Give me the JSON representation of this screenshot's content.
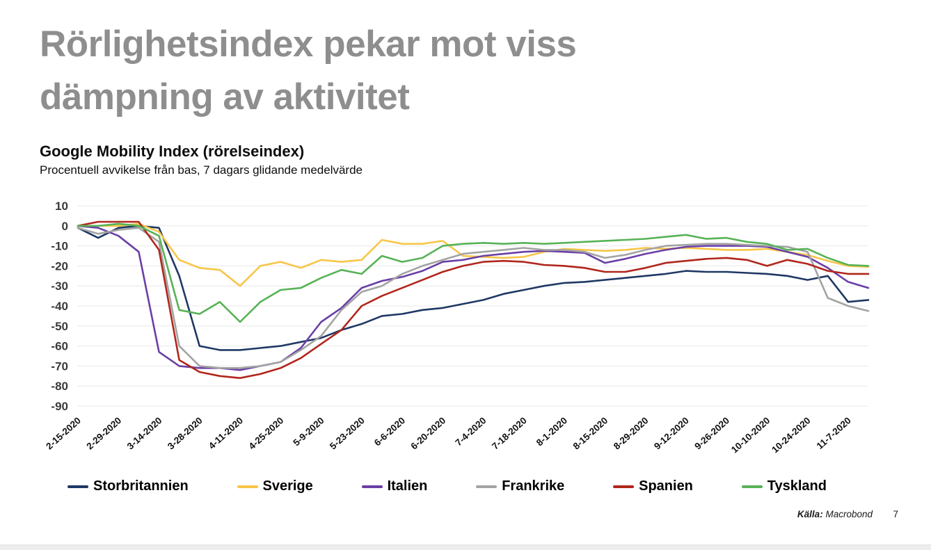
{
  "slide": {
    "title_line1": "Rörlighetsindex pekar mot viss",
    "title_line2": "dämpning av aktivitet"
  },
  "chart": {
    "heading": "Google Mobility Index (rörelseindex)",
    "subheading": "Procentuell avvikelse från bas, 7 dagars glidande medelvärde"
  },
  "footer": {
    "source_label": "Källa:",
    "source_value": "Macrobond",
    "page_number": "7"
  },
  "colors": {
    "title_gray": "#8e8e8e",
    "gridline": "#e8e8e8",
    "axis_text": "#3a3a3a"
  },
  "chart_data": {
    "type": "line",
    "title": "Google Mobility Index (rörelseindex)",
    "subtitle": "Procentuell avvikelse från bas, 7 dagars glidande medelvärde",
    "grid": "horizontal",
    "legend_position": "bottom",
    "ylim": [
      -90,
      10
    ],
    "y_ticks": [
      10,
      0,
      -10,
      -20,
      -30,
      -40,
      -50,
      -60,
      -70,
      -80,
      -90
    ],
    "x": [
      "2-15-2020",
      "2-22-2020",
      "2-29-2020",
      "3-7-2020",
      "3-14-2020",
      "3-21-2020",
      "3-28-2020",
      "4-4-2020",
      "4-11-2020",
      "4-18-2020",
      "4-25-2020",
      "5-2-2020",
      "5-9-2020",
      "5-16-2020",
      "5-23-2020",
      "5-30-2020",
      "6-6-2020",
      "6-13-2020",
      "6-20-2020",
      "6-27-2020",
      "7-4-2020",
      "7-11-2020",
      "7-18-2020",
      "7-25-2020",
      "8-1-2020",
      "8-8-2020",
      "8-15-2020",
      "8-22-2020",
      "8-29-2020",
      "9-5-2020",
      "9-12-2020",
      "9-19-2020",
      "9-26-2020",
      "10-3-2020",
      "10-10-2020",
      "10-17-2020",
      "10-24-2020",
      "10-31-2020",
      "11-7-2020",
      "11-14-2020"
    ],
    "x_tick_labels": [
      "2-15-2020",
      "2-29-2020",
      "3-14-2020",
      "3-28-2020",
      "4-11-2020",
      "4-25-2020",
      "5-9-2020",
      "5-23-2020",
      "6-6-2020",
      "6-20-2020",
      "7-4-2020",
      "7-18-2020",
      "8-1-2020",
      "8-15-2020",
      "8-29-2020",
      "9-12-2020",
      "9-26-2020",
      "10-10-2020",
      "10-24-2020",
      "11-7-2020"
    ],
    "series": [
      {
        "name": "Storbritannien",
        "color": "#1f3864",
        "values": [
          -1,
          -6,
          -1,
          0,
          -1,
          -25,
          -60,
          -62,
          -62,
          -61,
          -60,
          -58,
          -56,
          -52,
          -49,
          -45,
          -44,
          -42,
          -41,
          -39,
          -37,
          -34,
          -32,
          -30,
          -28.5,
          -28,
          -27,
          -26,
          -25,
          -24,
          -22.5,
          -23,
          -23,
          -23.5,
          -24,
          -25,
          -27,
          -25,
          -38,
          -37
        ]
      },
      {
        "name": "Sverige",
        "color": "#f7c648",
        "values": [
          0,
          0,
          0,
          1,
          -3,
          -17,
          -21,
          -22,
          -30,
          -20,
          -18,
          -21,
          -17,
          -18,
          -17,
          -7,
          -9,
          -9,
          -7.5,
          -15,
          -15.5,
          -16,
          -15.5,
          -13,
          -11.5,
          -12,
          -12.5,
          -12,
          -11,
          -11.5,
          -11,
          -11.5,
          -12,
          -12,
          -11.5,
          -13,
          -14.5,
          -17.5,
          -20,
          -20.5
        ]
      },
      {
        "name": "Italien",
        "color": "#6a3fa5",
        "values": [
          0,
          -1,
          -5,
          -13,
          -63,
          -70,
          -71,
          -71,
          -72,
          -70,
          -68,
          -61,
          -48,
          -41,
          -31,
          -27.5,
          -25.5,
          -22.5,
          -18,
          -17,
          -15,
          -14,
          -13,
          -12.5,
          -13,
          -13.5,
          -18.5,
          -16.5,
          -14,
          -12,
          -10.5,
          -10,
          -10,
          -10,
          -10.5,
          -13,
          -15.5,
          -21,
          -28,
          -31
        ]
      },
      {
        "name": "Frankrike",
        "color": "#a3a3a3",
        "values": [
          -1,
          -4,
          -2,
          -1,
          -8,
          -60,
          -70,
          -71,
          -71,
          -70,
          -68,
          -62,
          -55,
          -42,
          -33,
          -30,
          -24,
          -20,
          -17,
          -14,
          -13,
          -12,
          -11,
          -12,
          -12,
          -13,
          -16,
          -14.5,
          -12,
          -10,
          -9.5,
          -9,
          -9,
          -9.5,
          -10,
          -10.5,
          -13,
          -36,
          -40,
          -42.5
        ]
      },
      {
        "name": "Spanien",
        "color": "#b1261c",
        "values": [
          0,
          2,
          2,
          2,
          -12,
          -67,
          -73,
          -75,
          -76,
          -74,
          -71,
          -66,
          -59,
          -52,
          -40,
          -35,
          -31,
          -27,
          -23,
          -20,
          -18,
          -17.5,
          -18,
          -19.5,
          -20,
          -21,
          -23,
          -23,
          -21,
          -18.5,
          -17.5,
          -16.5,
          -16,
          -17,
          -20,
          -17,
          -19,
          -22.5,
          -24,
          -24
        ]
      },
      {
        "name": "Tyskland",
        "color": "#57b256",
        "values": [
          0,
          0,
          1,
          0,
          -5,
          -42,
          -44,
          -38,
          -48,
          -38,
          -32,
          -31,
          -26,
          -22,
          -24,
          -15,
          -18,
          -16,
          -10,
          -9,
          -8.5,
          -9,
          -8.5,
          -9,
          -8.5,
          -8,
          -7.5,
          -7,
          -6.5,
          -5.5,
          -4.5,
          -6.5,
          -6,
          -8,
          -9,
          -12,
          -11.5,
          -16,
          -19.5,
          -20
        ]
      }
    ]
  }
}
